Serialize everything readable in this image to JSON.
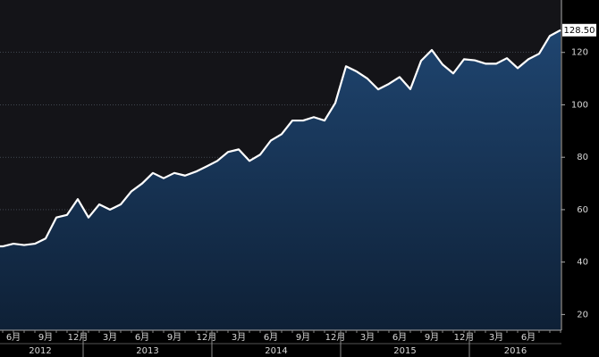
{
  "chart_data": {
    "type": "area",
    "categories": [
      null,
      "6月",
      null,
      null,
      "9月",
      null,
      null,
      "12月",
      null,
      null,
      "3月",
      null,
      null,
      "6月",
      null,
      null,
      "9月",
      null,
      null,
      "12月",
      null,
      null,
      "3月",
      null,
      null,
      "6月",
      null,
      null,
      "9月",
      null,
      null,
      "12月",
      null,
      null,
      "3月",
      null,
      null,
      "6月",
      null,
      null,
      "9月",
      null,
      null,
      "12月",
      null,
      null,
      "3月",
      null,
      null,
      "6月",
      null,
      null,
      null
    ],
    "x_groups": [
      {
        "label": "2012",
        "start": 0,
        "end": 7
      },
      {
        "label": "2013",
        "start": 8,
        "end": 19
      },
      {
        "label": "2014",
        "start": 20,
        "end": 31
      },
      {
        "label": "2015",
        "start": 32,
        "end": 43
      },
      {
        "label": "2016",
        "start": 44,
        "end": 52
      }
    ],
    "values": [
      46,
      47,
      46.5,
      47,
      49,
      57,
      58,
      64,
      57,
      62,
      60,
      62,
      67,
      70,
      74,
      72,
      74,
      73,
      74.5,
      76.5,
      78.6,
      82,
      83,
      78.6,
      81,
      86.4,
      88.8,
      94,
      94,
      95.3,
      94,
      100.7,
      114.7,
      112.7,
      110,
      105.9,
      108,
      110.6,
      106,
      116.8,
      120.9,
      115.4,
      112,
      117.4,
      117,
      115.7,
      115.7,
      117.8,
      114,
      117.4,
      119.5,
      126.3,
      128.5
    ],
    "value_labels": [
      null,
      null,
      null,
      null,
      null,
      null,
      null,
      null,
      null,
      null,
      null,
      null,
      null,
      null,
      null,
      null,
      null,
      null,
      null,
      null,
      null,
      null,
      null,
      null,
      null,
      null,
      null,
      null,
      null,
      null,
      null,
      null,
      null,
      null,
      null,
      null,
      null,
      null,
      null,
      null,
      null,
      null,
      null,
      null,
      null,
      null,
      null,
      null,
      null,
      null,
      null,
      null,
      "128.50"
    ],
    "line_color": "#ffffff",
    "fill_color": "#1c3d62",
    "ylim": [
      14,
      140
    ],
    "yticks": [
      20,
      40,
      60,
      80,
      100,
      120
    ],
    "y_axis_side": "right",
    "grid": true
  }
}
